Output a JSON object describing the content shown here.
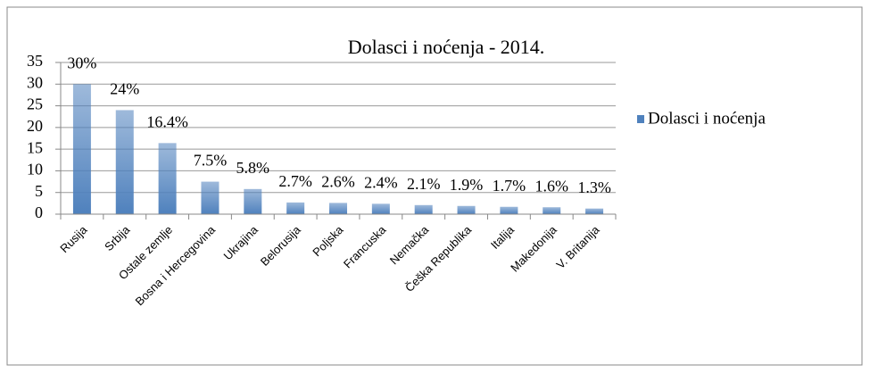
{
  "chart_data": {
    "type": "bar",
    "title": "Dolasci i noćenja - 2014.",
    "categories": [
      "Rusija",
      "Srbija",
      "Ostale zemlje",
      "Bosna i Hercegovina",
      "Ukrajina",
      "Belorusija",
      "Poljska",
      "Francuska",
      "Nemačka",
      "Češka Republika",
      "Italija",
      "Makedonija",
      "V. Britanija"
    ],
    "series": [
      {
        "name": "Dolasci i noćenja",
        "color": "#4f81bd",
        "values": [
          30,
          24,
          16.4,
          7.5,
          5.8,
          2.7,
          2.6,
          2.4,
          2.1,
          1.9,
          1.7,
          1.6,
          1.3
        ],
        "value_labels": [
          "30%",
          "24%",
          "16.4%",
          "7.5%",
          "5.8%",
          "2.7%",
          "2.6%",
          "2.4%",
          "2.1%",
          "1.9%",
          "1.7%",
          "1.6%",
          "1.3%"
        ]
      }
    ],
    "ylim": [
      0,
      35
    ],
    "yticks": [
      0,
      5,
      10,
      15,
      20,
      25,
      30,
      35
    ],
    "grid": true,
    "legend": "right"
  }
}
